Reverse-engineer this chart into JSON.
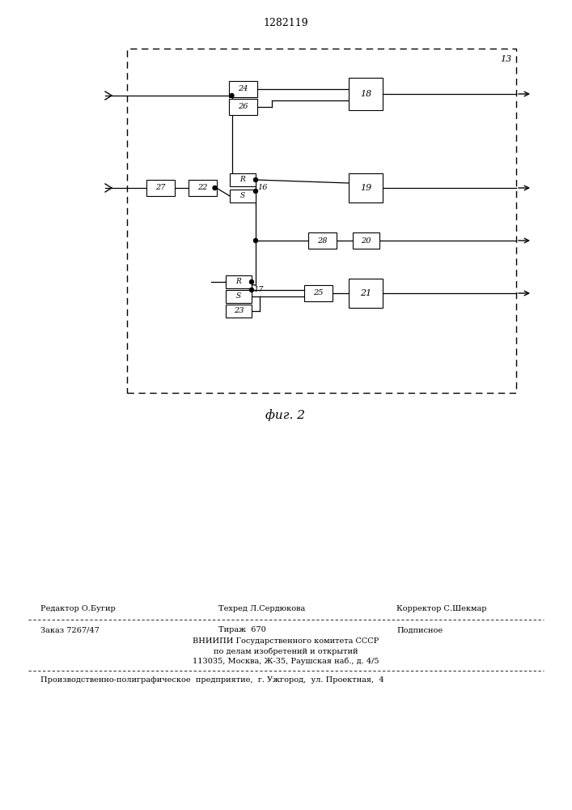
{
  "title": "1282119",
  "fig_label": "фиг. 2",
  "background_color": "#ffffff",
  "line_color": "#000000",
  "footer_line1a": "Редактор О.Бугир",
  "footer_line1b": "Техред Л.Сердюкова",
  "footer_line1c": "Корректор С.Шекмар",
  "footer_line2a": "Заказ 7267/47",
  "footer_line2b": "Тираж  670",
  "footer_line2c": "Подписное",
  "footer_line3": "ВНИИПИ Государственного комитета СССР",
  "footer_line4": "по делам изобретений и открытий",
  "footer_line5": "113035, Москва, Ж-35, Раушская наб., д. 4/5",
  "footer_line6": "Производственно-полиграфическое  предприятие,  г. Ужгород,  ул. Проектная,  4"
}
